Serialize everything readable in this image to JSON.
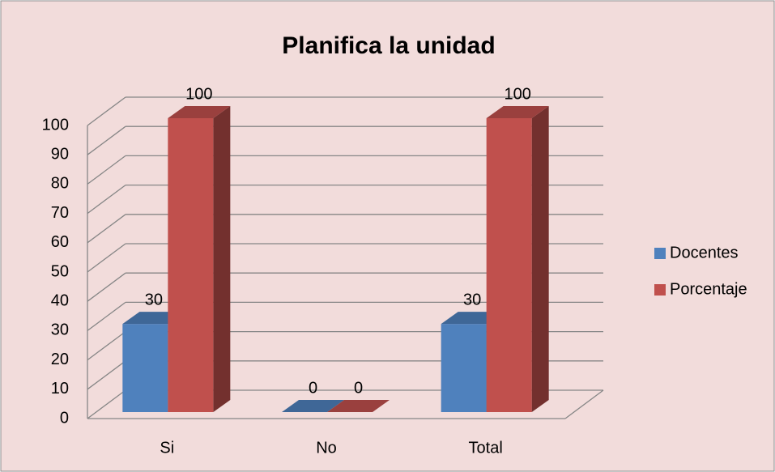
{
  "chart_data": {
    "type": "bar3d",
    "title": "Planifica la unidad",
    "categories": [
      "Si",
      "No",
      "Total"
    ],
    "series": [
      {
        "name": "Docentes",
        "color": "#4f81bd",
        "values": [
          30,
          0,
          30
        ]
      },
      {
        "name": "Porcentaje",
        "color": "#c0504d",
        "values": [
          100,
          0,
          100
        ]
      }
    ],
    "ylim": [
      0,
      100
    ],
    "yticks": [
      0,
      10,
      20,
      30,
      40,
      50,
      60,
      70,
      80,
      90,
      100
    ],
    "grid": true,
    "legend": "right"
  }
}
